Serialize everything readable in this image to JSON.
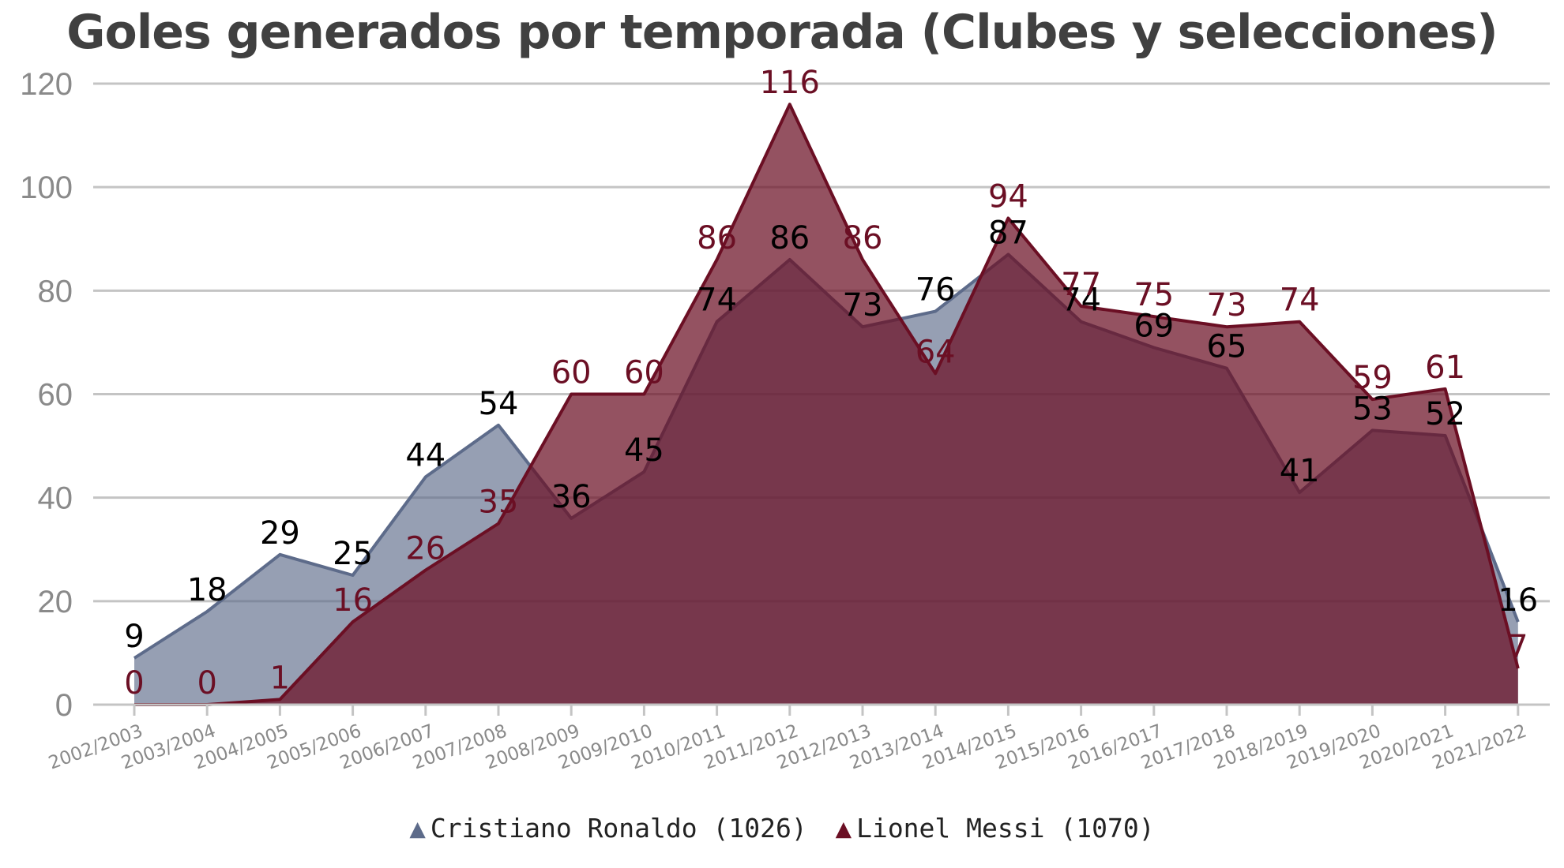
{
  "title": "Goles generados por temporada (Clubes y selecciones)",
  "chart_data": {
    "type": "area",
    "title": "Goles generados por temporada (Clubes y selecciones)",
    "xlabel": "",
    "ylabel": "",
    "ylim": [
      0,
      120
    ],
    "yticks": [
      "0",
      "20",
      "40",
      "60",
      "80",
      "100",
      "120"
    ],
    "grid": true,
    "legend_position": "bottom",
    "categories": [
      "2002/2003",
      "2003/2004",
      "2004/2005",
      "2005/2006",
      "2006/2007",
      "2007/2008",
      "2008/2009",
      "2009/2010",
      "2010/2011",
      "2011/2012",
      "2012/2013",
      "2013/2014",
      "2014/2015",
      "2015/2016",
      "2016/2017",
      "2017/2018",
      "2018/2019",
      "2019/2020",
      "2020/2021",
      "2021/2022"
    ],
    "series": [
      {
        "name": "Cristiano Ronaldo (1026)",
        "color": "#5d6b8a",
        "label_color": "#000000",
        "values": [
          9,
          18,
          29,
          25,
          44,
          54,
          36,
          45,
          74,
          86,
          73,
          76,
          87,
          74,
          69,
          65,
          41,
          53,
          52,
          16
        ]
      },
      {
        "name": "Lionel Messi (1070)",
        "color": "#6b0f24",
        "label_color": "#6b0f24",
        "values": [
          0,
          0,
          1,
          16,
          26,
          35,
          60,
          60,
          86,
          116,
          86,
          64,
          94,
          77,
          75,
          73,
          74,
          59,
          61,
          7
        ]
      }
    ]
  },
  "legend": [
    {
      "icon": "triangle-up-icon",
      "symbol": "▲",
      "label": "Cristiano Ronaldo (1026)",
      "color": "#5d6b8a"
    },
    {
      "icon": "triangle-up-icon",
      "symbol": "▲",
      "label": "Lionel Messi (1070)",
      "color": "#6b0f24"
    }
  ]
}
